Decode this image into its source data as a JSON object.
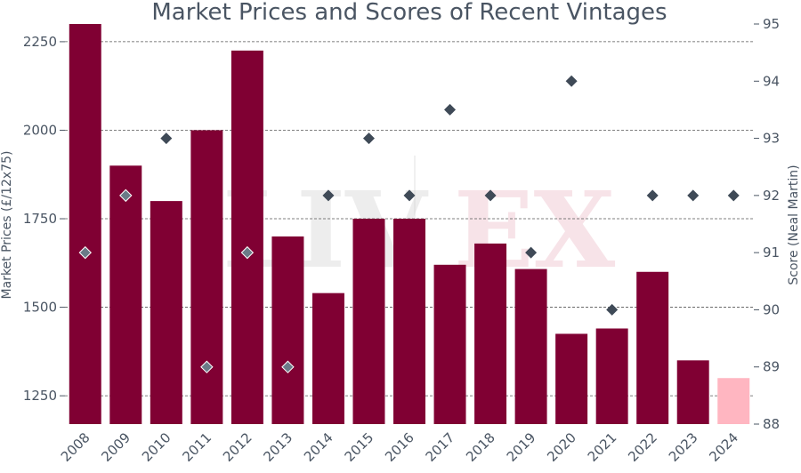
{
  "chart_data": {
    "type": "bar",
    "title": "Market Prices and Scores of Recent Vintages",
    "ylabel": "Market Prices (£/12x75)",
    "y2label": "Score (Neal Martin)",
    "categories": [
      "2008",
      "2009",
      "2010",
      "2011",
      "2012",
      "2013",
      "2014",
      "2015",
      "2016",
      "2017",
      "2018",
      "2019",
      "2020",
      "2021",
      "2022",
      "2023",
      "2024"
    ],
    "series": [
      {
        "kind": "bar",
        "values": [
          2300,
          1900,
          1800,
          2000,
          2225,
          1700,
          1540,
          1750,
          1750,
          1620,
          1680,
          1608,
          1425,
          1440,
          1600,
          1350,
          1300
        ],
        "color": "#800033",
        "highlight_color": "#ffb6c1",
        "highlight_index": 16
      },
      {
        "kind": "scatter",
        "axis": "right",
        "marker": "diamond",
        "values": [
          91,
          92,
          93,
          89,
          91,
          89,
          92,
          93,
          92,
          93.5,
          92,
          91,
          94,
          90,
          92,
          92,
          92
        ],
        "color": "#3f4a57",
        "light_color": "#6b7b88",
        "light_indices": [
          0,
          1,
          3,
          4,
          5
        ]
      }
    ],
    "ylim": [
      1170,
      2300
    ],
    "y2lim": [
      88,
      95
    ],
    "yticks": [
      1250,
      1500,
      1750,
      2000,
      2250
    ],
    "y2ticks": [
      88,
      89,
      90,
      91,
      92,
      93,
      94,
      95
    ],
    "grid": "horizontal dashed",
    "watermark": "LIV-EX"
  }
}
